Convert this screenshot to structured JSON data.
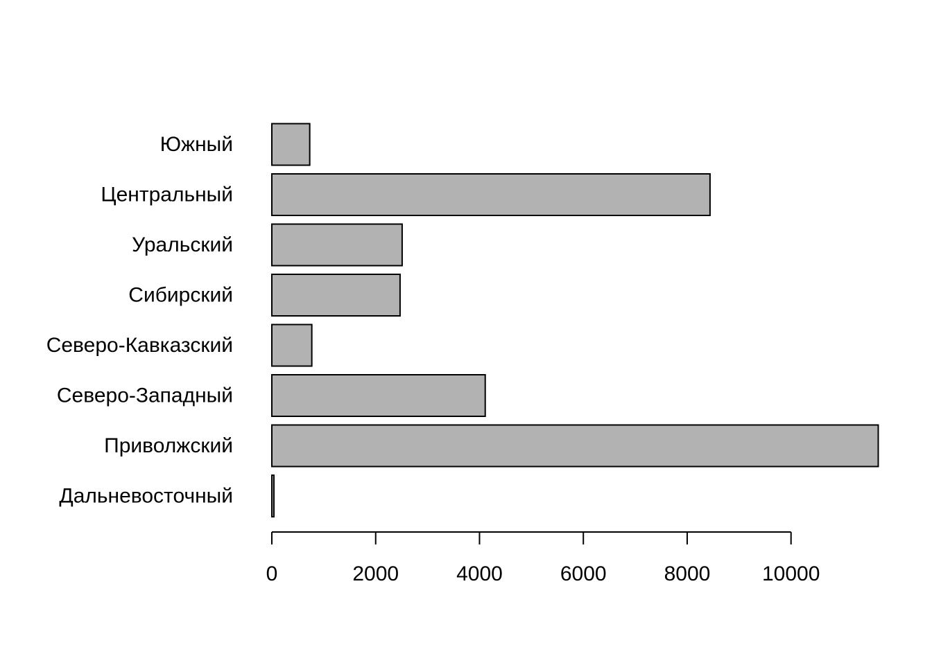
{
  "chart_data": {
    "type": "bar",
    "orientation": "horizontal",
    "title": "",
    "xlabel": "",
    "ylabel": "",
    "categories": [
      "Дальневосточный",
      "Приволжский",
      "Северо-Западный",
      "Северо-Кавказский",
      "Сибирский",
      "Уральский",
      "Центральный",
      "Южный"
    ],
    "values": [
      40,
      11680,
      4110,
      770,
      2470,
      2510,
      8440,
      730
    ],
    "xlim": [
      0,
      11680
    ],
    "xticks": [
      0,
      2000,
      4000,
      6000,
      8000,
      10000
    ],
    "xtick_labels": [
      "0",
      "2000",
      "4000",
      "6000",
      "8000",
      "10000"
    ],
    "grid": false,
    "legend": "none",
    "colors": {
      "bar_fill": "#b2b2b2",
      "bar_stroke": "#000000",
      "axis": "#000000",
      "text": "#000000"
    }
  }
}
